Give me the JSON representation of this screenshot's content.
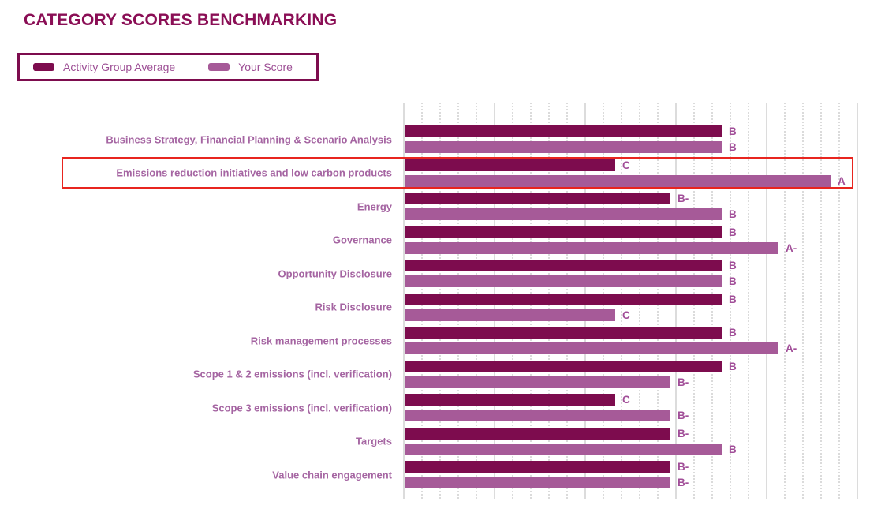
{
  "title": "CATEGORY SCORES BENCHMARKING",
  "legend": {
    "items": [
      {
        "label": "Activity Group Average",
        "color": "#7D0C4E"
      },
      {
        "label": "Your Score",
        "color": "#A65A98"
      }
    ]
  },
  "chart_data": {
    "type": "bar",
    "orientation": "horizontal",
    "title": "CATEGORY SCORES BENCHMARKING",
    "categories": [
      "Business Strategy, Financial Planning & Scenario Analysis",
      "Emissions reduction initiatives and low carbon products",
      "Energy",
      "Governance",
      "Opportunity Disclosure",
      "Risk Disclosure",
      "Risk management processes",
      "Scope 1 & 2 emissions (incl. verification)",
      "Scope 3 emissions (incl. verification)",
      "Targets",
      "Value chain engagement"
    ],
    "series": [
      {
        "name": "Activity Group Average",
        "color": "#7D0C4E",
        "grades": [
          "B",
          "C",
          "B-",
          "B",
          "B",
          "B",
          "B",
          "B",
          "C",
          "B-",
          "B-"
        ]
      },
      {
        "name": "Your Score",
        "color": "#A65A98",
        "grades": [
          "B",
          "A",
          "B",
          "A-",
          "B",
          "C",
          "A-",
          "B-",
          "B-",
          "B",
          "B-"
        ]
      }
    ],
    "grade_to_percent": {
      "C": 46.8,
      "B-": 58.9,
      "B": 70.3,
      "A-": 82.8,
      "A": 94.3
    },
    "axis": {
      "min": 0,
      "max": 100,
      "major_gridline_count": 6,
      "minors_per_major": 4,
      "gridline_style": "vertical, solid majors with dotted minors",
      "tick_labels_shown": false
    },
    "legend_position": "top-left",
    "highlight": {
      "category_index": 1,
      "category": "Emissions reduction initiatives and low carbon products",
      "color": "#E8251F"
    }
  },
  "colors": {
    "title": "#8A0E55",
    "category_label": "#A565A2",
    "grade_label": "#A14E98",
    "legend_text": "#9D4F95",
    "legend_border": "#7D0C4E",
    "gridline": "#DCDCDC",
    "background": "#FFFFFF"
  }
}
